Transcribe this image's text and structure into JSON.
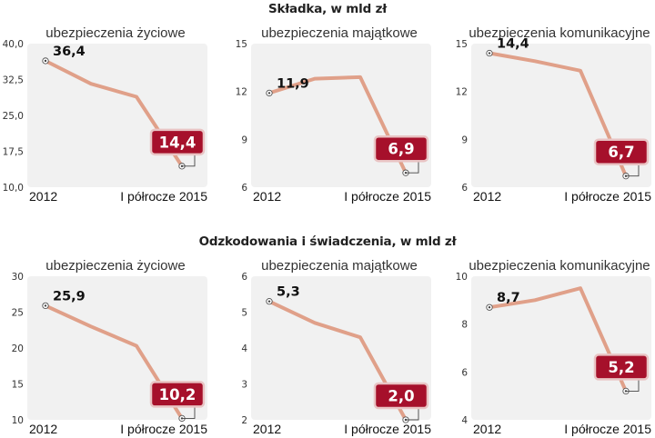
{
  "colors": {
    "line": "#e0a089",
    "plot_bg": "#f1f1f1",
    "end_box": "#a6102b",
    "end_box_stroke": "#e9c4c4"
  },
  "sections": [
    {
      "title": "Składka, w mld zł"
    },
    {
      "title": "Odzkodowania i świadczenia, w mld zł"
    }
  ],
  "chart_data": [
    {
      "type": "line",
      "title": "ubezpieczenia życiowe",
      "section": "Składka, w mld zł",
      "x_start": "2012",
      "x_end": "I półrocze 2015",
      "yticks": [
        "40,0",
        "32,5",
        "25,0",
        "17,5",
        "10,0"
      ],
      "ylim": [
        10,
        40
      ],
      "values": [
        36.4,
        31.6,
        28.9,
        14.4
      ],
      "start_label": "36,4",
      "end_label": "14,4"
    },
    {
      "type": "line",
      "title": "ubezpieczenia majątkowe",
      "section": "Składka, w mld zł",
      "x_start": "2012",
      "x_end": "I półrocze 2015",
      "yticks": [
        "15",
        "12",
        "9",
        "6"
      ],
      "ylim": [
        6,
        15
      ],
      "values": [
        11.9,
        12.8,
        12.9,
        6.9
      ],
      "start_label": "11,9",
      "end_label": "6,9"
    },
    {
      "type": "line",
      "title": "ubezpieczenia komunikacyjne",
      "section": "Składka, w mld zł",
      "x_start": "2012",
      "x_end": "I półrocze 2015",
      "yticks": [
        "15",
        "12",
        "9",
        "6"
      ],
      "ylim": [
        6,
        15
      ],
      "values": [
        14.4,
        13.9,
        13.3,
        6.7
      ],
      "start_label": "14,4",
      "end_label": "6,7"
    },
    {
      "type": "line",
      "title": "ubezpieczenia życiowe",
      "section": "Odzkodowania i świadczenia, w mld zł",
      "x_start": "2012",
      "x_end": "I półrocze 2015",
      "yticks": [
        "30",
        "25",
        "20",
        "15",
        "10"
      ],
      "ylim": [
        10,
        30
      ],
      "values": [
        25.9,
        23.0,
        20.3,
        10.2
      ],
      "start_label": "25,9",
      "end_label": "10,2"
    },
    {
      "type": "line",
      "title": "ubezpieczenia majątkowe",
      "section": "Odzkodowania i świadczenia, w mld zł",
      "x_start": "2012",
      "x_end": "I półrocze 2015",
      "yticks": [
        "6",
        "5",
        "4",
        "3",
        "2"
      ],
      "ylim": [
        2,
        6
      ],
      "values": [
        5.3,
        4.7,
        4.3,
        2.0
      ],
      "start_label": "5,3",
      "end_label": "2,0"
    },
    {
      "type": "line",
      "title": "ubezpieczenia komunikacyjne",
      "section": "Odzkodowania i świadczenia, w mld zł",
      "x_start": "2012",
      "x_end": "I półrocze 2015",
      "yticks": [
        "10",
        "8",
        "6",
        "4"
      ],
      "ylim": [
        4,
        10
      ],
      "values": [
        8.7,
        9.0,
        9.5,
        5.2
      ],
      "start_label": "8,7",
      "end_label": "5,2"
    }
  ]
}
